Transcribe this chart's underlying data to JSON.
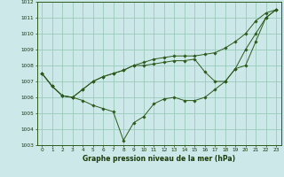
{
  "xlabel": "Graphe pression niveau de la mer (hPa)",
  "bg_color": "#cce8e8",
  "grid_color": "#99ccbb",
  "line_color": "#2d5a1b",
  "marker_color": "#2d5a1b",
  "x": [
    0,
    1,
    2,
    3,
    4,
    5,
    6,
    7,
    8,
    9,
    10,
    11,
    12,
    13,
    14,
    15,
    16,
    17,
    18,
    19,
    20,
    21,
    22,
    23
  ],
  "series1": [
    1007.5,
    1006.7,
    1006.1,
    1006.0,
    1005.8,
    1005.5,
    1005.3,
    1005.1,
    1003.3,
    1004.4,
    1004.8,
    1005.6,
    1005.9,
    1006.0,
    1005.8,
    1005.8,
    1006.0,
    1006.5,
    1007.0,
    1007.8,
    1009.0,
    1010.0,
    1011.0,
    1011.5
  ],
  "series2": [
    1007.5,
    1006.7,
    1006.1,
    1006.0,
    1006.5,
    1007.0,
    1007.3,
    1007.5,
    1007.7,
    1008.0,
    1008.0,
    1008.1,
    1008.2,
    1008.3,
    1008.3,
    1008.4,
    1007.6,
    1007.0,
    1007.0,
    1007.8,
    1008.0,
    1009.5,
    1011.0,
    1011.5
  ],
  "series3": [
    1007.5,
    1006.7,
    1006.1,
    1006.0,
    1006.5,
    1007.0,
    1007.3,
    1007.5,
    1007.7,
    1008.0,
    1008.2,
    1008.4,
    1008.5,
    1008.6,
    1008.6,
    1008.6,
    1008.7,
    1008.8,
    1009.1,
    1009.5,
    1010.0,
    1010.8,
    1011.3,
    1011.5
  ],
  "ylim": [
    1003,
    1012
  ],
  "yticks": [
    1003,
    1004,
    1005,
    1006,
    1007,
    1008,
    1009,
    1010,
    1011,
    1012
  ],
  "xticks": [
    0,
    1,
    2,
    3,
    4,
    5,
    6,
    7,
    8,
    9,
    10,
    11,
    12,
    13,
    14,
    15,
    16,
    17,
    18,
    19,
    20,
    21,
    22,
    23
  ],
  "xlabel_fontsize": 5.5,
  "tick_fontsize": 4.2,
  "line_width": 0.7,
  "marker_size": 1.8
}
